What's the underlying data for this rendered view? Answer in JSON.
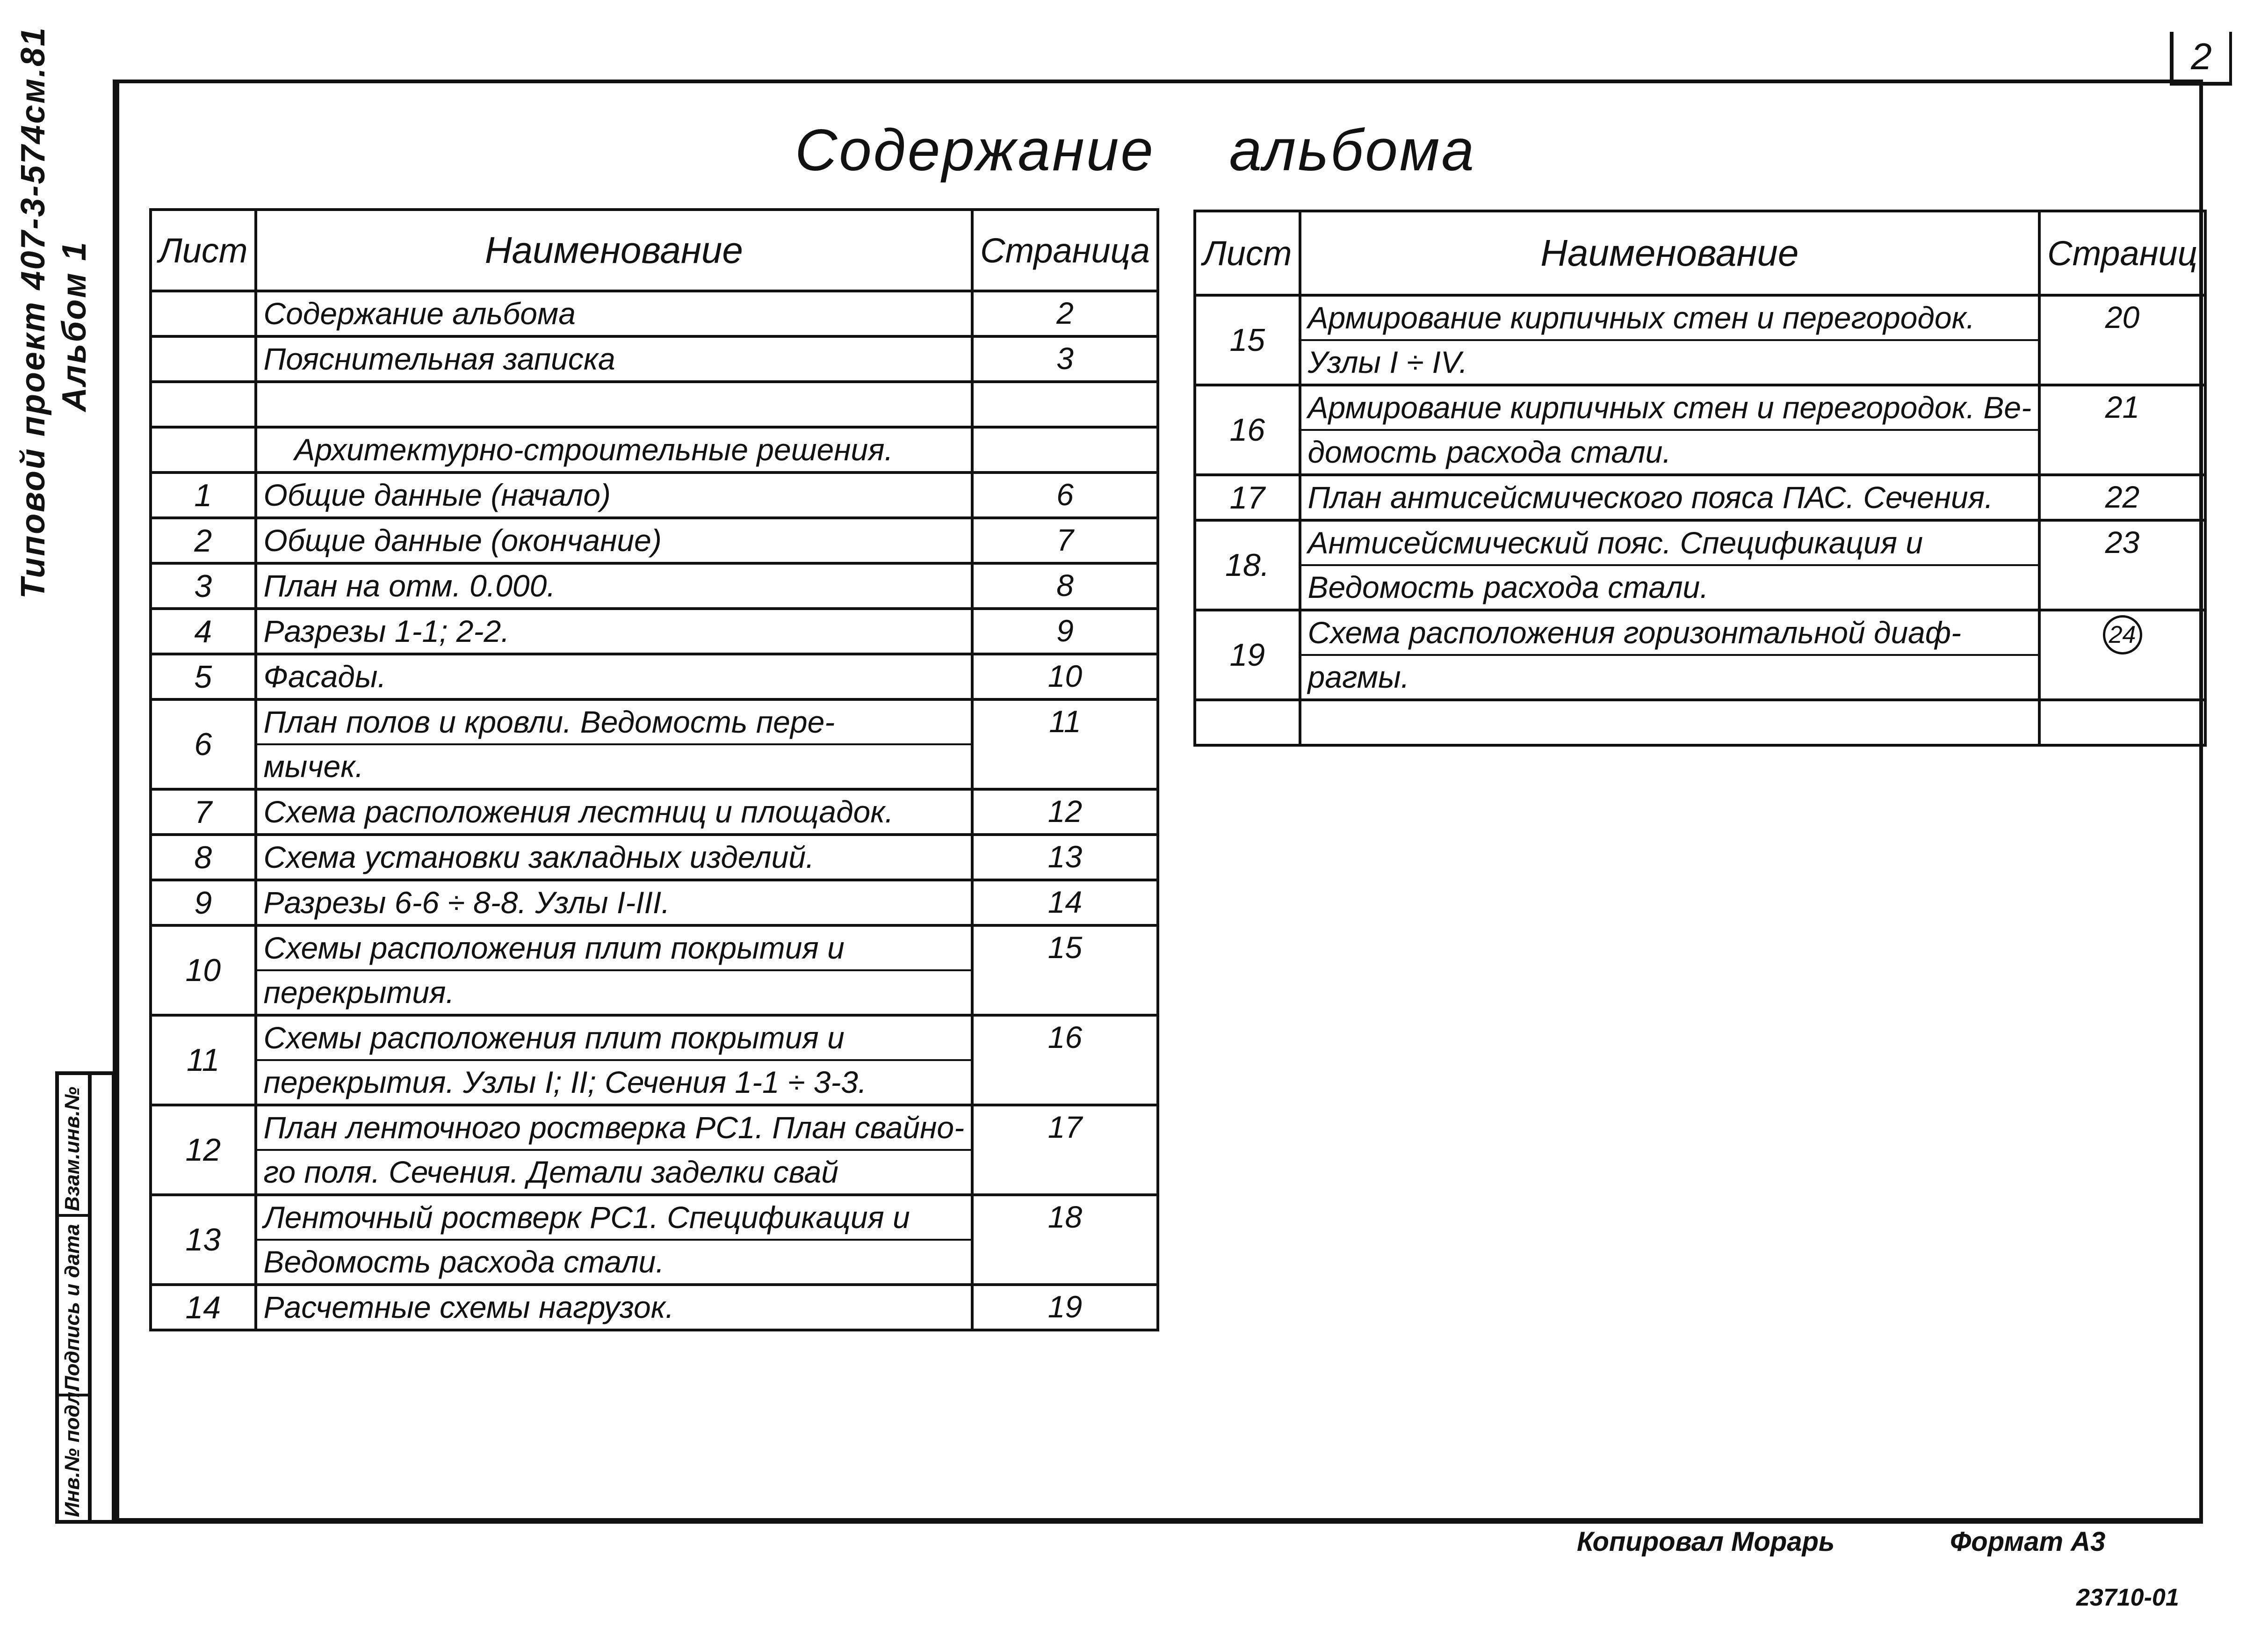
{
  "sheet_number": "2",
  "title": "Содержание альбома",
  "side_text": {
    "project": "Типовой проект 407-3-574см.81",
    "album": "Альбом 1"
  },
  "headers": {
    "sheet": "Лист",
    "name": "Наименование",
    "page": "Страница"
  },
  "headers_right": {
    "sheet": "Лист",
    "name": "Наименование",
    "page": "Страниц"
  },
  "left_table": [
    {
      "sheet": "",
      "lines": [
        "Содержание альбома"
      ],
      "page": "2"
    },
    {
      "sheet": "",
      "lines": [
        "Пояснительная записка"
      ],
      "page": "3"
    },
    {
      "sheet": "",
      "lines": [
        ""
      ],
      "page": ""
    },
    {
      "sheet": "",
      "lines": [
        "Архитектурно-строительные решения."
      ],
      "page": "",
      "indent": true
    },
    {
      "sheet": "1",
      "lines": [
        "Общие данные (начало)"
      ],
      "page": "6"
    },
    {
      "sheet": "2",
      "lines": [
        "Общие данные (окончание)"
      ],
      "page": "7"
    },
    {
      "sheet": "3",
      "lines": [
        "План на отм. 0.000."
      ],
      "page": "8"
    },
    {
      "sheet": "4",
      "lines": [
        "Разрезы 1-1; 2-2."
      ],
      "page": "9"
    },
    {
      "sheet": "5",
      "lines": [
        "Фасады."
      ],
      "page": "10"
    },
    {
      "sheet": "6",
      "lines": [
        "План полов и кровли. Ведомость пере-",
        "мычек."
      ],
      "page": "11"
    },
    {
      "sheet": "7",
      "lines": [
        "Схема расположения лестниц и площадок."
      ],
      "page": "12"
    },
    {
      "sheet": "8",
      "lines": [
        "Схема установки закладных изделий."
      ],
      "page": "13"
    },
    {
      "sheet": "9",
      "lines": [
        "Разрезы 6-6 ÷ 8-8. Узлы I-III."
      ],
      "page": "14"
    },
    {
      "sheet": "10",
      "lines": [
        "Схемы расположения плит покрытия и",
        "перекрытия."
      ],
      "page": "15"
    },
    {
      "sheet": "11",
      "lines": [
        "Схемы расположения плит покрытия и",
        "перекрытия. Узлы I; II; Сечения 1-1 ÷ 3-3."
      ],
      "page": "16"
    },
    {
      "sheet": "12",
      "lines": [
        "План ленточного ростверка РС1. План свайно-",
        "го поля. Сечения. Детали заделки свай"
      ],
      "page": "17"
    },
    {
      "sheet": "13",
      "lines": [
        "Ленточный ростверк РС1. Спецификация и",
        "Ведомость расхода стали."
      ],
      "page": "18"
    },
    {
      "sheet": "14",
      "lines": [
        "Расчетные схемы нагрузок."
      ],
      "page": "19"
    }
  ],
  "right_table": [
    {
      "sheet": "15",
      "lines": [
        "Армирование кирпичных стен и перегородок.",
        "Узлы I ÷ IV."
      ],
      "page": "20"
    },
    {
      "sheet": "16",
      "lines": [
        "Армирование кирпичных стен и перегородок. Ве-",
        "домость расхода стали."
      ],
      "page": "21"
    },
    {
      "sheet": "17",
      "lines": [
        "План антисейсмического пояса ПАС. Сечения."
      ],
      "page": "22"
    },
    {
      "sheet": "18.",
      "lines": [
        "Антисейсмический пояс. Спецификация и",
        "Ведомость расхода стали."
      ],
      "page": "23"
    },
    {
      "sheet": "19",
      "lines": [
        "Схема расположения горизонтальной диаф-",
        "рагмы."
      ],
      "page": "24",
      "circled": true
    },
    {
      "sheet": "",
      "lines": [
        ""
      ],
      "page": ""
    }
  ],
  "stamp": {
    "replacement_inv": "Взам.инв.№",
    "signature_date": "Подпись и дата",
    "original_inv": "Инв.№ подл."
  },
  "footer": {
    "copied": "Копировал Морарь",
    "format": "Формат А3",
    "code": "23710-01"
  }
}
